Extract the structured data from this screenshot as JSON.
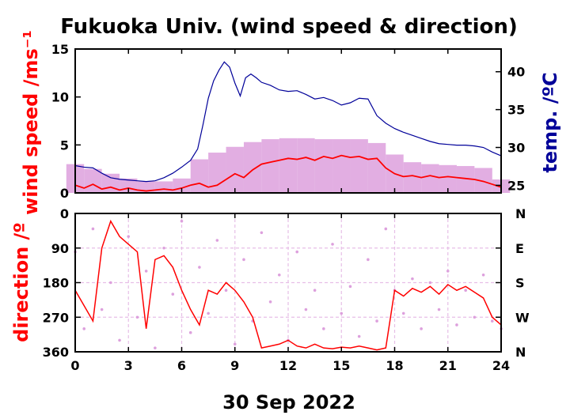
{
  "title": "Fukuoka Univ. (wind speed & direction)",
  "date_label": "30 Sep 2022",
  "colors": {
    "wind_line": "#ff0000",
    "wind_band": "#dda0dd",
    "temperature": "#000099",
    "axis": "#000000",
    "direction_grid": "#e7bfe7"
  },
  "chart_data": [
    {
      "type": "line",
      "title": "Fukuoka Univ. (wind speed & direction)",
      "xlabel": "30 Sep 2022",
      "ylabel": "wind speed /ms⁻¹",
      "y2label": "temp. /ºC",
      "xlim": [
        0,
        24
      ],
      "ylim": [
        0,
        15
      ],
      "y2lim": [
        24,
        43
      ],
      "xticks": [
        0,
        3,
        6,
        9,
        12,
        15,
        18,
        21,
        24
      ],
      "yticks": [
        0,
        5,
        10,
        15
      ],
      "y2ticks": [
        25,
        30,
        35,
        40
      ],
      "grid": false,
      "series": [
        {
          "axis": "left",
          "x": [
            0,
            0.5,
            1,
            1.5,
            2,
            2.5,
            3,
            3.5,
            4,
            4.5,
            5,
            5.5,
            6,
            6.5,
            7,
            7.5,
            8,
            8.5,
            9,
            9.5,
            10,
            10.5,
            11,
            11.5,
            12,
            12.5,
            13,
            13.5,
            14,
            14.5,
            15,
            15.5,
            16,
            16.5,
            17,
            17.5,
            18,
            18.5,
            19,
            19.5,
            20,
            20.5,
            21,
            21.5,
            22,
            22.5,
            23,
            23.5,
            24
          ],
          "values": [
            0.8,
            0.5,
            0.9,
            0.4,
            0.6,
            0.3,
            0.5,
            0.3,
            0.2,
            0.3,
            0.4,
            0.3,
            0.5,
            0.8,
            1.0,
            0.6,
            0.8,
            1.4,
            2.0,
            1.6,
            2.4,
            3.0,
            3.2,
            3.4,
            3.6,
            3.5,
            3.7,
            3.4,
            3.8,
            3.6,
            3.9,
            3.7,
            3.8,
            3.5,
            3.6,
            2.6,
            2.0,
            1.7,
            1.8,
            1.6,
            1.8,
            1.6,
            1.7,
            1.6,
            1.5,
            1.4,
            1.2,
            0.9,
            0.6
          ]
        },
        {
          "axis": "left",
          "band": true,
          "x": [
            0,
            1,
            2,
            3,
            4,
            5,
            6,
            7,
            8,
            9,
            10,
            11,
            12,
            13,
            14,
            15,
            16,
            17,
            18,
            19,
            20,
            21,
            22,
            23,
            24
          ],
          "values": [
            3.0,
            2.5,
            2.0,
            1.5,
            1.2,
            1.2,
            1.5,
            3.5,
            4.2,
            4.8,
            5.3,
            5.6,
            5.7,
            5.7,
            5.6,
            5.6,
            5.6,
            5.2,
            4.0,
            3.2,
            3.0,
            2.9,
            2.8,
            2.6,
            1.4
          ]
        },
        {
          "axis": "right",
          "x": [
            0,
            0.5,
            1,
            1.5,
            2,
            2.5,
            3,
            3.5,
            4,
            4.5,
            5,
            5.5,
            6,
            6.5,
            6.9,
            7.2,
            7.5,
            7.8,
            8.1,
            8.4,
            8.7,
            9.0,
            9.3,
            9.6,
            9.9,
            10.2,
            10.5,
            11,
            11.5,
            12,
            12.5,
            13,
            13.5,
            14,
            14.5,
            15,
            15.5,
            16,
            16.5,
            17,
            17.5,
            18,
            18.5,
            19,
            19.5,
            20,
            20.5,
            21,
            21.5,
            22,
            22.5,
            23,
            23.5,
            24
          ],
          "values": [
            27.6,
            27.4,
            27.3,
            26.6,
            26.0,
            25.8,
            25.7,
            25.6,
            25.5,
            25.6,
            26.0,
            26.6,
            27.4,
            28.3,
            29.8,
            33.0,
            36.5,
            38.8,
            40.2,
            41.3,
            40.6,
            38.5,
            36.8,
            39.2,
            39.7,
            39.2,
            38.6,
            38.2,
            37.6,
            37.4,
            37.5,
            37.0,
            36.4,
            36.6,
            36.2,
            35.6,
            35.9,
            36.5,
            36.4,
            34.2,
            33.2,
            32.5,
            32.0,
            31.6,
            31.2,
            30.8,
            30.5,
            30.4,
            30.3,
            30.3,
            30.2,
            30.0,
            29.4,
            28.9
          ]
        }
      ]
    },
    {
      "type": "scatter",
      "xlabel": "30 Sep 2022",
      "ylabel": "direction /º",
      "xlim": [
        0,
        24
      ],
      "ylim": [
        0,
        360
      ],
      "y_inverted": true,
      "xticks": [
        0,
        3,
        6,
        9,
        12,
        15,
        18,
        21,
        24
      ],
      "yticks": [
        0,
        90,
        180,
        270,
        360
      ],
      "y2ticklabels": [
        "N",
        "E",
        "S",
        "W",
        "N"
      ],
      "grid": true,
      "series": [
        {
          "style": "scatter",
          "x": [
            0,
            0.5,
            1,
            1.5,
            2,
            2.5,
            3,
            3.5,
            4,
            4.5,
            5,
            5.5,
            6,
            6.5,
            7,
            7.5,
            8,
            8.5,
            9,
            9.5,
            10,
            10.5,
            11,
            11.5,
            12,
            12.5,
            13,
            13.5,
            14,
            14.5,
            15,
            15.5,
            16,
            16.5,
            17,
            17.5,
            18,
            18.5,
            19,
            19.5,
            20,
            20.5,
            21,
            21.5,
            22,
            22.5,
            23,
            23.5,
            24
          ],
          "values": [
            100,
            300,
            40,
            250,
            180,
            330,
            60,
            270,
            150,
            350,
            90,
            210,
            20,
            310,
            140,
            260,
            70,
            200,
            340,
            120,
            280,
            50,
            230,
            160,
            330,
            100,
            250,
            200,
            300,
            80,
            260,
            190,
            320,
            120,
            280,
            40,
            200,
            260,
            170,
            300,
            180,
            250,
            150,
            290,
            200,
            270,
            160,
            280,
            300
          ]
        },
        {
          "style": "line",
          "x": [
            0,
            0.5,
            1,
            1.5,
            2,
            2.5,
            3,
            3.5,
            4,
            4.5,
            5,
            5.5,
            6,
            6.5,
            7,
            7.5,
            8,
            8.5,
            9,
            9.5,
            10,
            10.5,
            11,
            11.5,
            12,
            12.5,
            13,
            13.5,
            14,
            14.5,
            15,
            15.5,
            16,
            16.5,
            17,
            17.5,
            18,
            18.5,
            19,
            19.5,
            20,
            20.5,
            21,
            21.5,
            22,
            22.5,
            23,
            23.5,
            24
          ],
          "values": [
            200,
            240,
            280,
            90,
            20,
            60,
            80,
            100,
            300,
            120,
            110,
            140,
            200,
            250,
            290,
            200,
            210,
            180,
            200,
            230,
            270,
            350,
            345,
            340,
            330,
            345,
            350,
            340,
            350,
            352,
            348,
            350,
            345,
            350,
            355,
            350,
            200,
            215,
            195,
            205,
            190,
            210,
            185,
            200,
            190,
            205,
            220,
            270,
            290
          ]
        }
      ]
    }
  ]
}
